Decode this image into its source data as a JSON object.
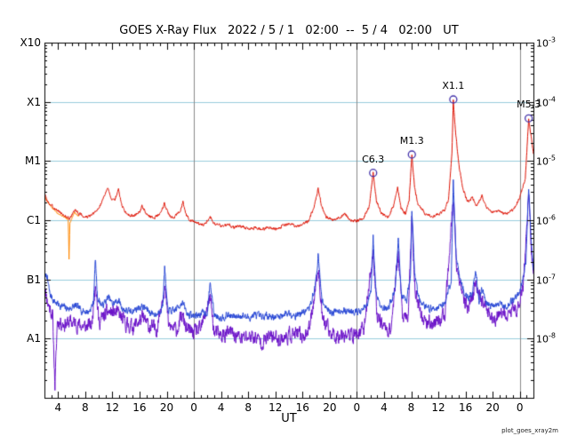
{
  "chart_data": {
    "type": "line",
    "title": "GOES X-Ray Flux   2022 / 5 / 1   02:00  --  5 / 4   02:00   UT",
    "xlabel": "UT",
    "watermark": "plot_goes_xray2m",
    "x_start_hour": 2,
    "x_end_hour": 74,
    "log_top": -3,
    "log_bottom": -9,
    "x_tick_labels": [
      "4",
      "8",
      "12",
      "16",
      "20",
      "0",
      "4",
      "8",
      "12",
      "16",
      "20",
      "0",
      "4",
      "8",
      "12",
      "16",
      "20",
      "0"
    ],
    "left_axis_labels": [
      {
        "text": "X10",
        "log": -3
      },
      {
        "text": "X1",
        "log": -4
      },
      {
        "text": "M1",
        "log": -5
      },
      {
        "text": "C1",
        "log": -6
      },
      {
        "text": "B1",
        "log": -7
      },
      {
        "text": "A1",
        "log": -8
      }
    ],
    "right_axis_labels": [
      {
        "mantissa": "10",
        "exponent": "-3",
        "log": -3
      },
      {
        "mantissa": "10",
        "exponent": "-4",
        "log": -4
      },
      {
        "mantissa": "10",
        "exponent": "-5",
        "log": -5
      },
      {
        "mantissa": "10",
        "exponent": "-6",
        "log": -6
      },
      {
        "mantissa": "10",
        "exponent": "-7",
        "log": -7
      },
      {
        "mantissa": "10",
        "exponent": "-8",
        "log": -8
      }
    ],
    "hgrid_logs": [
      -4,
      -5,
      -6,
      -7,
      -8
    ],
    "vgrid_hours": [
      24,
      48,
      72
    ],
    "colors": {
      "axis": "#000000",
      "hgrid": "#99ccdd",
      "vgrid": "#888888",
      "flare_marker": "#4433aa",
      "background": "#ffffff"
    },
    "flares": [
      {
        "label": "C6.3",
        "hour": 50.4,
        "log": -5.2
      },
      {
        "label": "M1.3",
        "hour": 56.1,
        "log": -4.89
      },
      {
        "label": "X1.1",
        "hour": 62.2,
        "log": -3.96
      },
      {
        "label": "M5.3",
        "hour": 73.3,
        "log": -4.28
      }
    ],
    "series": [
      {
        "name": "xray-short-secondary",
        "color": "#6a11c8",
        "noise": 0.1,
        "seed": 11,
        "points": [
          [
            2,
            -7.1
          ],
          [
            2.5,
            -7.4
          ],
          [
            3.2,
            -7.6
          ],
          [
            3.55,
            -8.8
          ],
          [
            3.9,
            -7.7
          ],
          [
            5,
            -7.75
          ],
          [
            6,
            -7.72
          ],
          [
            7,
            -7.76
          ],
          [
            8,
            -7.8
          ],
          [
            9,
            -7.76
          ],
          [
            9.5,
            -7.0
          ],
          [
            10,
            -7.72
          ],
          [
            11.4,
            -7.55
          ],
          [
            12.9,
            -7.58
          ],
          [
            14,
            -7.76
          ],
          [
            15,
            -7.8
          ],
          [
            16.4,
            -7.66
          ],
          [
            17.5,
            -7.8
          ],
          [
            18.5,
            -7.85
          ],
          [
            19.7,
            -7.1
          ],
          [
            20.3,
            -7.8
          ],
          [
            21.5,
            -7.85
          ],
          [
            22.3,
            -7.62
          ],
          [
            23,
            -7.86
          ],
          [
            24,
            -7.9
          ],
          [
            25,
            -7.86
          ],
          [
            26.4,
            -7.3
          ],
          [
            27,
            -7.9
          ],
          [
            28,
            -7.95
          ],
          [
            29.5,
            -7.9
          ],
          [
            31,
            -8.0
          ],
          [
            32.5,
            -7.95
          ],
          [
            34,
            -8.05
          ],
          [
            35.5,
            -7.96
          ],
          [
            37,
            -8.0
          ],
          [
            38.5,
            -7.92
          ],
          [
            40,
            -7.96
          ],
          [
            41,
            -7.85
          ],
          [
            42.3,
            -6.8
          ],
          [
            43,
            -7.7
          ],
          [
            44,
            -7.9
          ],
          [
            45,
            -7.95
          ],
          [
            46,
            -7.9
          ],
          [
            47,
            -7.95
          ],
          [
            48,
            -7.92
          ],
          [
            49,
            -7.86
          ],
          [
            50.4,
            -6.55
          ],
          [
            51,
            -7.6
          ],
          [
            52,
            -7.8
          ],
          [
            53,
            -7.85
          ],
          [
            54.1,
            -6.55
          ],
          [
            54.7,
            -7.6
          ],
          [
            55.5,
            -7.7
          ],
          [
            56.1,
            -6.05
          ],
          [
            56.6,
            -7.2
          ],
          [
            57.5,
            -7.6
          ],
          [
            58.5,
            -7.75
          ],
          [
            60,
            -7.7
          ],
          [
            61,
            -7.6
          ],
          [
            62.2,
            -5.6
          ],
          [
            62.7,
            -6.8
          ],
          [
            63.5,
            -7.3
          ],
          [
            64.5,
            -7.5
          ],
          [
            65.5,
            -7.05
          ],
          [
            66.5,
            -7.4
          ],
          [
            67.5,
            -7.6
          ],
          [
            68.5,
            -7.66
          ],
          [
            70,
            -7.6
          ],
          [
            71.5,
            -7.5
          ],
          [
            72.5,
            -7.1
          ],
          [
            73.3,
            -5.55
          ],
          [
            73.7,
            -6.5
          ],
          [
            74,
            -7.0
          ]
        ]
      },
      {
        "name": "xray-short-primary",
        "color": "#2746d4",
        "noise": 0.05,
        "seed": 7,
        "points": [
          [
            2,
            -7.0
          ],
          [
            2.3,
            -6.9
          ],
          [
            2.8,
            -7.25
          ],
          [
            3.5,
            -7.38
          ],
          [
            4.5,
            -7.45
          ],
          [
            5.5,
            -7.5
          ],
          [
            6.5,
            -7.45
          ],
          [
            7.5,
            -7.52
          ],
          [
            8.5,
            -7.55
          ],
          [
            9.2,
            -7.4
          ],
          [
            9.5,
            -6.65
          ],
          [
            9.8,
            -7.3
          ],
          [
            10.5,
            -7.45
          ],
          [
            11.4,
            -7.3
          ],
          [
            12,
            -7.42
          ],
          [
            12.9,
            -7.35
          ],
          [
            13.5,
            -7.5
          ],
          [
            14.5,
            -7.55
          ],
          [
            15.5,
            -7.5
          ],
          [
            16.4,
            -7.45
          ],
          [
            17.5,
            -7.55
          ],
          [
            18.5,
            -7.6
          ],
          [
            19.4,
            -7.45
          ],
          [
            19.7,
            -6.8
          ],
          [
            20.1,
            -7.5
          ],
          [
            21,
            -7.55
          ],
          [
            22.3,
            -7.38
          ],
          [
            23,
            -7.58
          ],
          [
            24,
            -7.62
          ],
          [
            25,
            -7.58
          ],
          [
            26,
            -7.55
          ],
          [
            26.4,
            -7.05
          ],
          [
            27,
            -7.6
          ],
          [
            28,
            -7.64
          ],
          [
            29,
            -7.6
          ],
          [
            30,
            -7.64
          ],
          [
            31,
            -7.6
          ],
          [
            32,
            -7.65
          ],
          [
            33,
            -7.6
          ],
          [
            34,
            -7.65
          ],
          [
            35,
            -7.6
          ],
          [
            36,
            -7.64
          ],
          [
            37,
            -7.6
          ],
          [
            38,
            -7.56
          ],
          [
            39,
            -7.6
          ],
          [
            40,
            -7.56
          ],
          [
            41,
            -7.5
          ],
          [
            41.9,
            -7.1
          ],
          [
            42.3,
            -6.6
          ],
          [
            42.8,
            -7.3
          ],
          [
            43.5,
            -7.5
          ],
          [
            44.5,
            -7.55
          ],
          [
            45.5,
            -7.5
          ],
          [
            46.5,
            -7.55
          ],
          [
            47.5,
            -7.52
          ],
          [
            48.5,
            -7.55
          ],
          [
            49.5,
            -7.45
          ],
          [
            50.1,
            -7.2
          ],
          [
            50.4,
            -6.3
          ],
          [
            50.8,
            -7.2
          ],
          [
            51.5,
            -7.45
          ],
          [
            52.5,
            -7.5
          ],
          [
            53.6,
            -7.2
          ],
          [
            54.1,
            -6.35
          ],
          [
            54.6,
            -7.3
          ],
          [
            55.3,
            -7.4
          ],
          [
            55.9,
            -6.9
          ],
          [
            56.1,
            -5.8
          ],
          [
            56.5,
            -6.9
          ],
          [
            57.1,
            -7.3
          ],
          [
            58,
            -7.45
          ],
          [
            59,
            -7.5
          ],
          [
            60,
            -7.46
          ],
          [
            61,
            -7.4
          ],
          [
            61.9,
            -7.0
          ],
          [
            62.2,
            -5.35
          ],
          [
            62.6,
            -6.55
          ],
          [
            63.2,
            -7.0
          ],
          [
            64,
            -7.3
          ],
          [
            65,
            -7.25
          ],
          [
            65.5,
            -6.85
          ],
          [
            66,
            -7.35
          ],
          [
            66.4,
            -7.15
          ],
          [
            67,
            -7.4
          ],
          [
            68,
            -7.45
          ],
          [
            69,
            -7.42
          ],
          [
            70,
            -7.45
          ],
          [
            71,
            -7.35
          ],
          [
            72,
            -7.2
          ],
          [
            72.9,
            -6.7
          ],
          [
            73.3,
            -5.45
          ],
          [
            73.6,
            -6.2
          ],
          [
            74,
            -6.8
          ]
        ]
      },
      {
        "name": "xray-long-secondary",
        "color": "#ff8800",
        "noise": 0.012,
        "seed": 5,
        "points": [
          [
            2,
            -5.6
          ],
          [
            3,
            -5.78
          ],
          [
            4,
            -5.88
          ],
          [
            5,
            -5.95
          ],
          [
            5.5,
            -6.0
          ],
          [
            5.62,
            -6.65
          ],
          [
            5.75,
            -6.05
          ],
          [
            6.4,
            -5.86
          ],
          [
            7,
            -5.93
          ]
        ]
      },
      {
        "name": "xray-long-primary",
        "color": "#dd1100",
        "noise": 0.02,
        "seed": 3,
        "points": [
          [
            2,
            -5.55
          ],
          [
            2.5,
            -5.7
          ],
          [
            3.5,
            -5.8
          ],
          [
            4.5,
            -5.88
          ],
          [
            5.2,
            -5.95
          ],
          [
            5.8,
            -5.97
          ],
          [
            6.5,
            -5.82
          ],
          [
            7.2,
            -5.9
          ],
          [
            8,
            -5.95
          ],
          [
            9,
            -5.92
          ],
          [
            10,
            -5.8
          ],
          [
            10.7,
            -5.62
          ],
          [
            11.4,
            -5.45
          ],
          [
            11.8,
            -5.62
          ],
          [
            12.3,
            -5.68
          ],
          [
            12.9,
            -5.48
          ],
          [
            13.4,
            -5.75
          ],
          [
            14,
            -5.88
          ],
          [
            15,
            -5.93
          ],
          [
            16,
            -5.86
          ],
          [
            16.4,
            -5.76
          ],
          [
            17,
            -5.9
          ],
          [
            18,
            -5.96
          ],
          [
            19,
            -5.9
          ],
          [
            19.7,
            -5.72
          ],
          [
            20.3,
            -5.9
          ],
          [
            21,
            -5.96
          ],
          [
            22,
            -5.86
          ],
          [
            22.4,
            -5.68
          ],
          [
            22.9,
            -5.92
          ],
          [
            23.5,
            -6.0
          ],
          [
            24.5,
            -6.05
          ],
          [
            25.5,
            -6.08
          ],
          [
            26.4,
            -5.93
          ],
          [
            27,
            -6.05
          ],
          [
            28,
            -6.1
          ],
          [
            29,
            -6.07
          ],
          [
            30,
            -6.12
          ],
          [
            31,
            -6.1
          ],
          [
            32,
            -6.15
          ],
          [
            33,
            -6.12
          ],
          [
            34,
            -6.16
          ],
          [
            35,
            -6.12
          ],
          [
            36,
            -6.15
          ],
          [
            37,
            -6.1
          ],
          [
            38,
            -6.06
          ],
          [
            39,
            -6.1
          ],
          [
            40,
            -6.07
          ],
          [
            41,
            -6.0
          ],
          [
            41.8,
            -5.72
          ],
          [
            42.3,
            -5.45
          ],
          [
            42.8,
            -5.76
          ],
          [
            43.5,
            -5.95
          ],
          [
            44.5,
            -6.0
          ],
          [
            45.5,
            -5.96
          ],
          [
            46.3,
            -5.88
          ],
          [
            47,
            -6.0
          ],
          [
            48,
            -6.02
          ],
          [
            49,
            -5.96
          ],
          [
            49.8,
            -5.78
          ],
          [
            50.4,
            -5.2
          ],
          [
            50.9,
            -5.68
          ],
          [
            51.6,
            -5.88
          ],
          [
            52.6,
            -5.95
          ],
          [
            53.4,
            -5.75
          ],
          [
            54,
            -5.45
          ],
          [
            54.5,
            -5.8
          ],
          [
            55.2,
            -5.9
          ],
          [
            55.7,
            -5.65
          ],
          [
            56.1,
            -4.89
          ],
          [
            56.5,
            -5.45
          ],
          [
            57,
            -5.72
          ],
          [
            58,
            -5.88
          ],
          [
            59,
            -5.94
          ],
          [
            60,
            -5.9
          ],
          [
            60.9,
            -5.83
          ],
          [
            61.5,
            -5.65
          ],
          [
            62,
            -4.9
          ],
          [
            62.2,
            -3.96
          ],
          [
            62.5,
            -4.45
          ],
          [
            63,
            -5.05
          ],
          [
            63.6,
            -5.45
          ],
          [
            64.3,
            -5.68
          ],
          [
            65,
            -5.62
          ],
          [
            65.7,
            -5.76
          ],
          [
            66.4,
            -5.58
          ],
          [
            67,
            -5.78
          ],
          [
            68,
            -5.88
          ],
          [
            69,
            -5.84
          ],
          [
            70,
            -5.9
          ],
          [
            71,
            -5.82
          ],
          [
            72,
            -5.62
          ],
          [
            72.8,
            -5.3
          ],
          [
            73.3,
            -4.28
          ],
          [
            73.7,
            -4.6
          ],
          [
            74,
            -4.85
          ]
        ]
      }
    ]
  }
}
